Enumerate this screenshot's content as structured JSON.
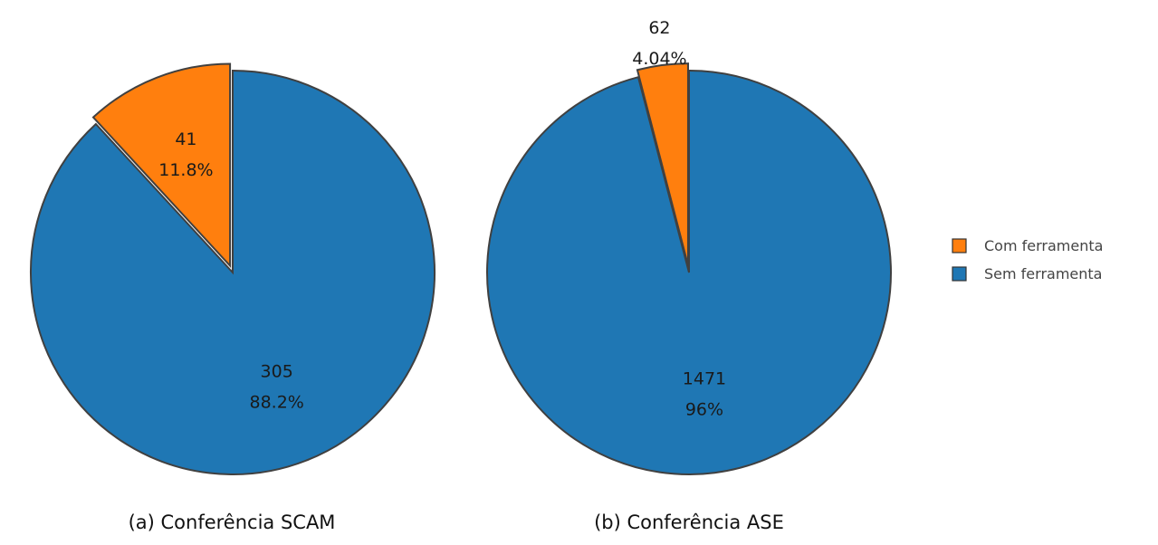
{
  "chart_data": [
    {
      "type": "pie",
      "caption": "(a) Conferência SCAM",
      "slices": [
        {
          "name": "Com ferramenta",
          "value": 41,
          "percent_label": "11.8%",
          "color": "#ff7f0e",
          "exploded": true
        },
        {
          "name": "Sem ferramenta",
          "value": 305,
          "percent_label": "88.2%",
          "color": "#1f77b4",
          "exploded": false
        }
      ]
    },
    {
      "type": "pie",
      "caption": "(b) Conferência ASE",
      "slices": [
        {
          "name": "Com ferramenta",
          "value": 62,
          "percent_label": "4.04%",
          "color": "#ff7f0e",
          "exploded": true
        },
        {
          "name": "Sem ferramenta",
          "value": 1471,
          "percent_label": "96%",
          "color": "#1f77b4",
          "exploded": false
        }
      ]
    }
  ],
  "legend": {
    "items": [
      {
        "label": "Com ferramenta",
        "color": "#ff7f0e"
      },
      {
        "label": "Sem ferramenta",
        "color": "#1f77b4"
      }
    ]
  }
}
